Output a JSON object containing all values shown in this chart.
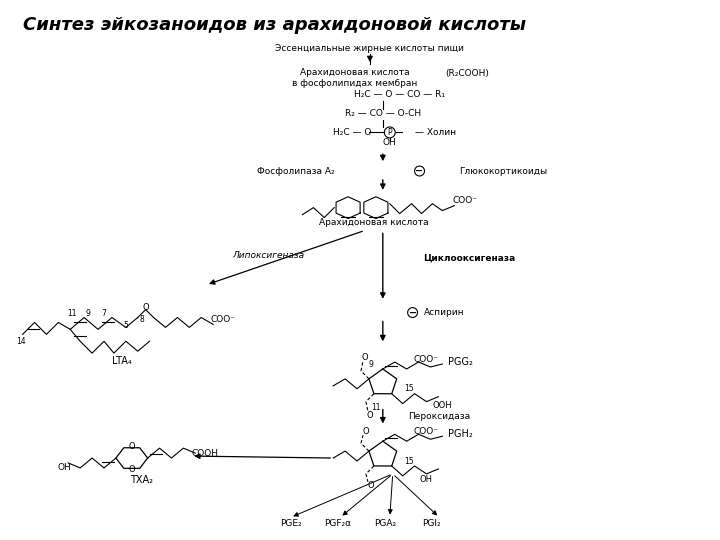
{
  "title": "Синтез эйкозаноидов из арахидоновой кислоты",
  "bg_color": "#ffffff",
  "labels": {
    "essential": "Эссенциальные жирные кислоты пищи",
    "arachidonic_membrane": "Арахидоновая кислота\nв фосфолипидах мембран",
    "r2cooh": "(R₂COOH)",
    "h2c_oco_r1": "H₂C — O — CO — R₁",
    "r2_co_och": "R₂ — CO — O-CH",
    "h2c_o": "H₂C — O —",
    "p_label": "P",
    "choline": "— Холин",
    "oh": "OH",
    "phospholipase": "Фосфолипаза А₂",
    "glucocorticoids": "Глюкокортикоиды",
    "coo_minus": "COO⁻",
    "arachidonic_acid": "Арахидоновая кислота",
    "lipoxygenase": "Липоксигеназа",
    "cyclooxygenase": "Циклооксигеназа",
    "aspirin": "Аспирин",
    "lta4": "LTA₄",
    "pgg2": "PGG₂",
    "peroxidase": "Пероксидаза",
    "pgh2": "PGH₂",
    "txa2": "TXA₂",
    "pge2": "PGE₂",
    "pgf2a": "PGF₂α",
    "pga2": "PGA₂",
    "pgi2": "PGI₂",
    "ooh": "OOH",
    "cooh": "COOH",
    "num_11": "11",
    "num_9": "9",
    "num_7": "7",
    "num_5": "5",
    "num_8": "8",
    "num_14": "14",
    "num_15": "15"
  }
}
